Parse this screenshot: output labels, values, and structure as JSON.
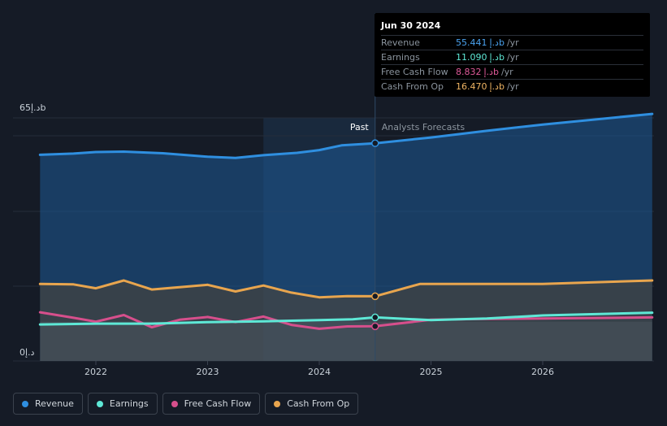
{
  "tooltip": {
    "date": "Jun 30 2024",
    "rows": [
      {
        "label": "Revenue",
        "value": "55.441",
        "currency": "د.إb",
        "unit": "/yr",
        "color": "#4aa3f0"
      },
      {
        "label": "Earnings",
        "value": "11.090",
        "currency": "د.إb",
        "unit": "/yr",
        "color": "#5ee8d6"
      },
      {
        "label": "Free Cash Flow",
        "value": "8.832",
        "currency": "د.إb",
        "unit": "/yr",
        "color": "#e05a9a"
      },
      {
        "label": "Cash From Op",
        "value": "16.470",
        "currency": "د.إb",
        "unit": "/yr",
        "color": "#f0b564"
      }
    ]
  },
  "legend": [
    {
      "label": "Revenue",
      "color": "#2f8fe0"
    },
    {
      "label": "Earnings",
      "color": "#5ee8d6"
    },
    {
      "label": "Free Cash Flow",
      "color": "#d64f8c"
    },
    {
      "label": "Cash From Op",
      "color": "#e8a54e"
    }
  ],
  "chart_data": {
    "type": "line",
    "title": "",
    "ylim": [
      0,
      65
    ],
    "y_ticks": [
      "65د.إb",
      "0د.إ"
    ],
    "x_range": [
      2021.5,
      2026.98
    ],
    "x_ticks": [
      {
        "value": 2022,
        "label": "2022"
      },
      {
        "value": 2023,
        "label": "2023"
      },
      {
        "value": 2024,
        "label": "2024"
      },
      {
        "value": 2025,
        "label": "2025"
      },
      {
        "value": 2026,
        "label": "2026"
      }
    ],
    "divider": 2024.5,
    "past_band_start": 2023.5,
    "past_label": "Past",
    "forecast_label": "Analysts Forecasts",
    "series": [
      {
        "name": "Revenue",
        "color": "#2f8fe0",
        "fill": true,
        "marker": 2024.5,
        "points": [
          [
            2021.5,
            52.5
          ],
          [
            2021.8,
            52.8
          ],
          [
            2022,
            53.2
          ],
          [
            2022.25,
            53.3
          ],
          [
            2022.6,
            52.9
          ],
          [
            2023,
            52.0
          ],
          [
            2023.25,
            51.7
          ],
          [
            2023.5,
            52.4
          ],
          [
            2023.8,
            53.0
          ],
          [
            2024,
            53.7
          ],
          [
            2024.2,
            54.9
          ],
          [
            2024.5,
            55.44
          ],
          [
            2025,
            56.9
          ],
          [
            2025.5,
            58.6
          ],
          [
            2026,
            60.2
          ],
          [
            2026.98,
            62.9
          ]
        ]
      },
      {
        "name": "Cash From Op",
        "color": "#e8a54e",
        "fill": true,
        "marker": 2024.5,
        "points": [
          [
            2021.5,
            19.6
          ],
          [
            2021.8,
            19.5
          ],
          [
            2022,
            18.5
          ],
          [
            2022.25,
            20.5
          ],
          [
            2022.5,
            18.2
          ],
          [
            2022.75,
            18.8
          ],
          [
            2023,
            19.4
          ],
          [
            2023.25,
            17.7
          ],
          [
            2023.5,
            19.2
          ],
          [
            2023.75,
            17.4
          ],
          [
            2024,
            16.2
          ],
          [
            2024.25,
            16.5
          ],
          [
            2024.5,
            16.47
          ],
          [
            2024.9,
            19.6
          ],
          [
            2025.5,
            19.6
          ],
          [
            2026,
            19.6
          ],
          [
            2026.98,
            20.5
          ]
        ]
      },
      {
        "name": "Free Cash Flow",
        "color": "#d64f8c",
        "fill": false,
        "marker": 2024.5,
        "points": [
          [
            2021.5,
            12.4
          ],
          [
            2021.8,
            11.0
          ],
          [
            2022,
            10.0
          ],
          [
            2022.25,
            11.7
          ],
          [
            2022.5,
            8.6
          ],
          [
            2022.75,
            10.5
          ],
          [
            2023,
            11.2
          ],
          [
            2023.25,
            9.9
          ],
          [
            2023.5,
            11.3
          ],
          [
            2023.75,
            9.2
          ],
          [
            2024,
            8.2
          ],
          [
            2024.25,
            8.8
          ],
          [
            2024.5,
            8.83
          ],
          [
            2025,
            10.5
          ],
          [
            2025.5,
            10.7
          ],
          [
            2026,
            10.8
          ],
          [
            2026.98,
            11.1
          ]
        ]
      },
      {
        "name": "Earnings",
        "color": "#5ee8d6",
        "fill": false,
        "marker": 2024.5,
        "points": [
          [
            2021.5,
            9.3
          ],
          [
            2022,
            9.5
          ],
          [
            2022.5,
            9.5
          ],
          [
            2023,
            9.9
          ],
          [
            2023.5,
            10.1
          ],
          [
            2024,
            10.4
          ],
          [
            2024.3,
            10.6
          ],
          [
            2024.5,
            11.09
          ],
          [
            2025,
            10.4
          ],
          [
            2025.5,
            10.8
          ],
          [
            2026,
            11.6
          ],
          [
            2026.98,
            12.3
          ]
        ]
      }
    ]
  }
}
